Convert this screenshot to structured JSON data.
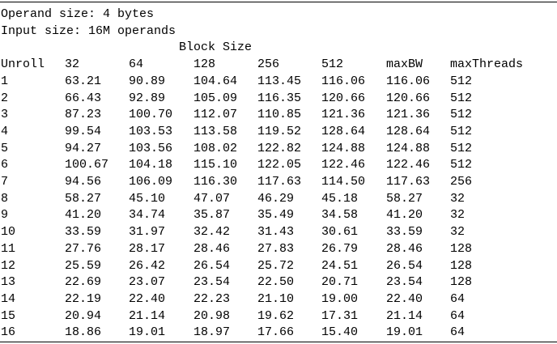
{
  "header": {
    "operand_size": "Operand size: 4 bytes",
    "input_size": "Input size: 16M operands",
    "group_label": "Block Size"
  },
  "table": {
    "columns": [
      "Unroll",
      "32",
      "64",
      "128",
      "256",
      "512",
      "maxBW",
      "maxThreads"
    ],
    "rows": [
      [
        "1",
        "63.21",
        "90.89",
        "104.64",
        "113.45",
        "116.06",
        "116.06",
        "512"
      ],
      [
        "2",
        "66.43",
        "92.89",
        "105.09",
        "116.35",
        "120.66",
        "120.66",
        "512"
      ],
      [
        "3",
        "87.23",
        "100.70",
        "112.07",
        "110.85",
        "121.36",
        "121.36",
        "512"
      ],
      [
        "4",
        "99.54",
        "103.53",
        "113.58",
        "119.52",
        "128.64",
        "128.64",
        "512"
      ],
      [
        "5",
        "94.27",
        "103.56",
        "108.02",
        "122.82",
        "124.88",
        "124.88",
        "512"
      ],
      [
        "6",
        "100.67",
        "104.18",
        "115.10",
        "122.05",
        "122.46",
        "122.46",
        "512"
      ],
      [
        "7",
        "94.56",
        "106.09",
        "116.30",
        "117.63",
        "114.50",
        "117.63",
        "256"
      ],
      [
        "8",
        "58.27",
        "45.10",
        "47.07",
        "46.29",
        "45.18",
        "58.27",
        "32"
      ],
      [
        "9",
        "41.20",
        "34.74",
        "35.87",
        "35.49",
        "34.58",
        "41.20",
        "32"
      ],
      [
        "10",
        "33.59",
        "31.97",
        "32.42",
        "31.43",
        "30.61",
        "33.59",
        "32"
      ],
      [
        "11",
        "27.76",
        "28.17",
        "28.46",
        "27.83",
        "26.79",
        "28.46",
        "128"
      ],
      [
        "12",
        "25.59",
        "26.42",
        "26.54",
        "25.72",
        "24.51",
        "26.54",
        "128"
      ],
      [
        "13",
        "22.69",
        "23.07",
        "23.54",
        "22.50",
        "20.71",
        "23.54",
        "128"
      ],
      [
        "14",
        "22.19",
        "22.40",
        "22.23",
        "21.10",
        "19.00",
        "22.40",
        "64"
      ],
      [
        "15",
        "20.94",
        "21.14",
        "20.98",
        "19.62",
        "17.31",
        "21.14",
        "64"
      ],
      [
        "16",
        "18.86",
        "19.01",
        "18.97",
        "17.66",
        "15.40",
        "19.01",
        "64"
      ]
    ]
  }
}
